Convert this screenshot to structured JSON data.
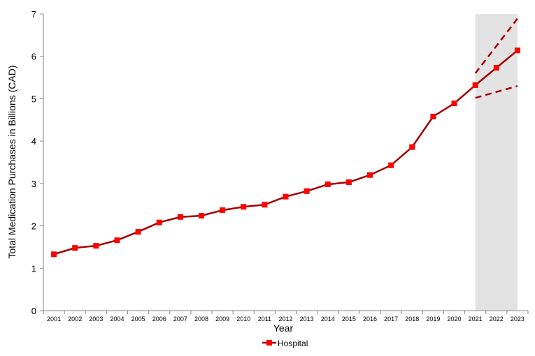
{
  "chart_data": {
    "type": "line",
    "xlabel": "Year",
    "ylabel": "Total Medication Purchases in Billions (CAD)",
    "ylim": [
      0,
      7
    ],
    "yticks": [
      0,
      1,
      2,
      3,
      4,
      5,
      6,
      7
    ],
    "grid": false,
    "legend_position": "bottom",
    "categories": [
      "2001",
      "2002",
      "2003",
      "2004",
      "2005",
      "2006",
      "2007",
      "2008",
      "2009",
      "2010",
      "2011",
      "2012",
      "2013",
      "2014",
      "2015",
      "2016",
      "2017",
      "2018",
      "2019",
      "2020",
      "2021",
      "2022",
      "2023"
    ],
    "series": [
      {
        "name": "Hospital",
        "color": "#a50000",
        "marker_color": "#ff0000",
        "values": [
          1.33,
          1.48,
          1.53,
          1.66,
          1.86,
          2.08,
          2.21,
          2.24,
          2.37,
          2.45,
          2.5,
          2.69,
          2.82,
          2.98,
          3.03,
          3.2,
          3.43,
          3.86,
          4.58,
          4.89,
          5.32,
          5.73,
          6.14
        ]
      }
    ],
    "forecast_bounds": {
      "x": [
        "2021",
        "2023"
      ],
      "upper": [
        5.6,
        6.89
      ],
      "lower": [
        5.02,
        5.3
      ],
      "color": "#a50000"
    },
    "shaded_range": {
      "from": "2021",
      "to": "2023",
      "color": "#e3e3e3"
    }
  }
}
